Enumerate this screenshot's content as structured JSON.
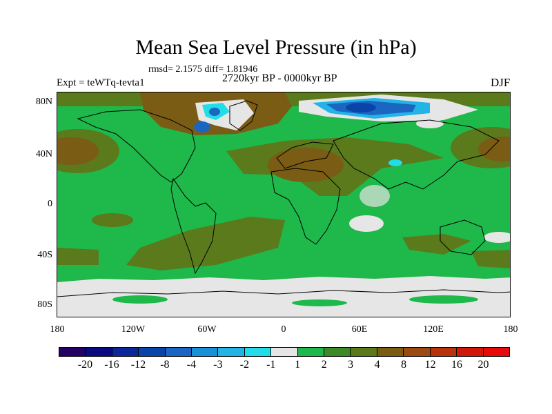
{
  "title": "Mean Sea Level Pressure (in hPa)",
  "stats_text": "rmsd= 2.1575 diff= 1.81946",
  "period": "2720kyr BP - 0000kyr BP",
  "experiment": "Expt = teWTq-tevta1",
  "season": "DJF",
  "lat_ticks": [
    "80N",
    "40N",
    "0",
    "40S",
    "80S"
  ],
  "lon_ticks": [
    "180",
    "120W",
    "60W",
    "0",
    "60E",
    "120E",
    "180"
  ],
  "colorbar": {
    "labels": [
      "-20",
      "-16",
      "-12",
      "-8",
      "-4",
      "-3",
      "-2",
      "-1",
      "1",
      "2",
      "3",
      "4",
      "8",
      "12",
      "16",
      "20"
    ],
    "colors": [
      "#220066",
      "#0a0a80",
      "#0a2899",
      "#0a44aa",
      "#1a66c0",
      "#1a90d6",
      "#22b4e6",
      "#22dce8",
      "#e6e6e6",
      "#1fb84b",
      "#3c8a28",
      "#5a7a1c",
      "#7a5c14",
      "#9a4a12",
      "#b8320e",
      "#d2160a",
      "#e60a0a"
    ]
  }
}
